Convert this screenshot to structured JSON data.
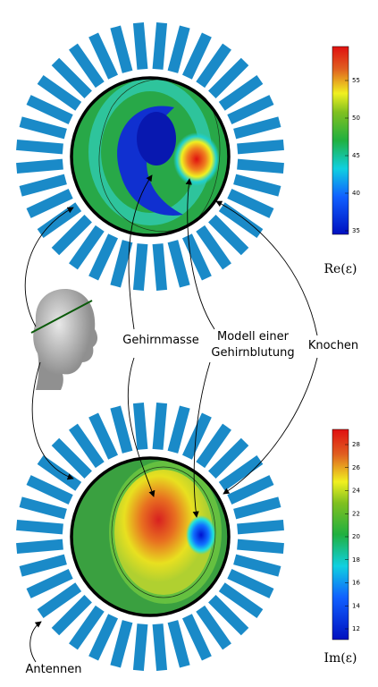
{
  "labels": {
    "brain_mass": "Gehirnmasse",
    "hemorrhage_model": [
      "Modell einer",
      "Gehirnblutung"
    ],
    "bone": "Knochen",
    "antennas": "Antennen"
  },
  "colorbars": [
    {
      "label": "Re(ε)",
      "ticks": [
        35,
        40,
        45,
        50,
        55
      ]
    },
    {
      "label": "Im(ε)",
      "ticks": [
        12,
        14,
        16,
        18,
        20,
        22,
        24,
        26,
        28
      ]
    }
  ]
}
